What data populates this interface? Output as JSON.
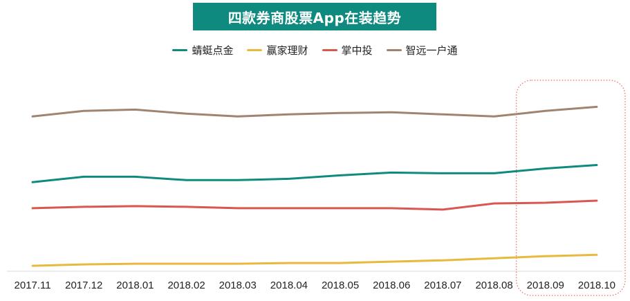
{
  "chart_data": {
    "type": "line",
    "title": "四款券商股票App在装趋势",
    "categories": [
      "2017.11",
      "2017.12",
      "2018.01",
      "2018.02",
      "2018.03",
      "2018.04",
      "2018.05",
      "2018.06",
      "2018.07",
      "2018.08",
      "2018.09",
      "2018.10"
    ],
    "series": [
      {
        "name": "蜻蜓点金",
        "color": "#0e8a7e",
        "values": [
          130,
          138,
          138,
          133,
          133,
          135,
          140,
          144,
          143,
          143,
          150,
          155
        ]
      },
      {
        "name": "赢家理财",
        "color": "#e7b93f",
        "values": [
          8,
          10,
          11,
          11,
          11,
          12,
          12,
          14,
          16,
          19,
          22,
          24
        ]
      },
      {
        "name": "掌中投",
        "color": "#d95750",
        "values": [
          92,
          94,
          95,
          94,
          92,
          92,
          92,
          92,
          90,
          99,
          100,
          103
        ]
      },
      {
        "name": "智远一户通",
        "color": "#a08470",
        "values": [
          226,
          234,
          236,
          230,
          226,
          229,
          231,
          232,
          229,
          226,
          234,
          240
        ]
      }
    ],
    "ylim": [
      0,
      300
    ],
    "grid": false,
    "y_axis_visible": false,
    "legend_position": "top",
    "highlight": {
      "categories": [
        "2018.09",
        "2018.10"
      ],
      "style": "dotted-rounded-box",
      "color": "#e36a5a"
    }
  }
}
